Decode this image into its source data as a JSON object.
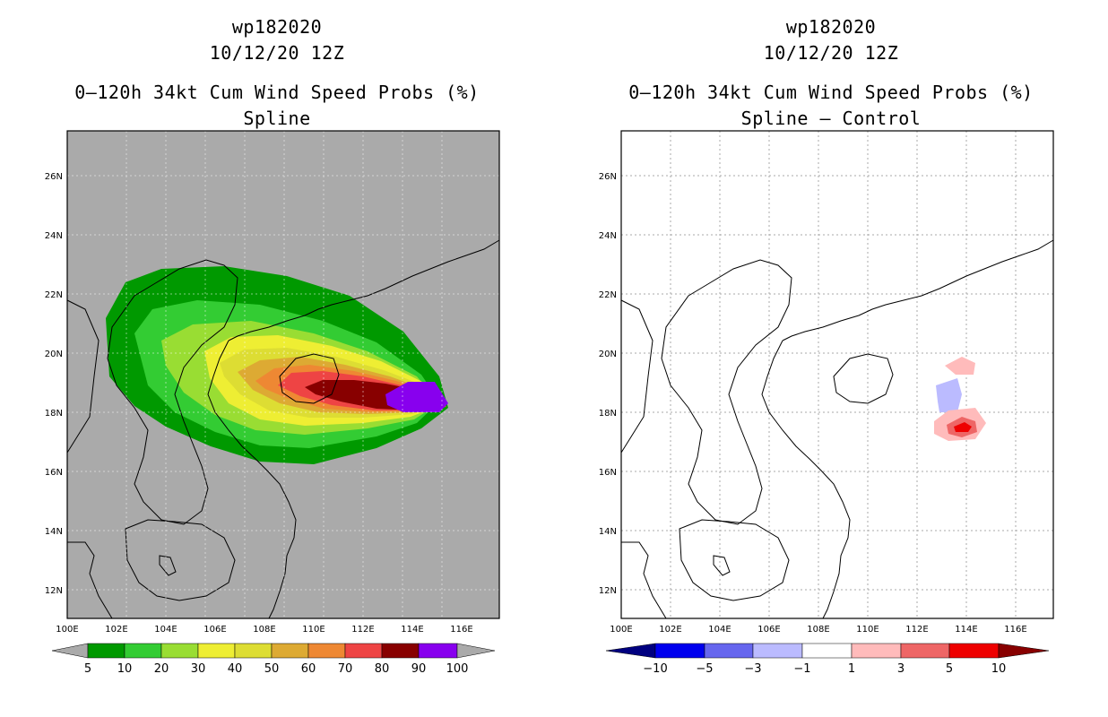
{
  "panels": [
    {
      "title_lines": [
        "wp182020",
        "10/12/20 12Z",
        "0–120h 34kt Cum Wind Speed Probs (%)",
        "Spline"
      ],
      "x_ticks": [
        "100E",
        "102E",
        "104E",
        "106E",
        "108E",
        "110E",
        "112E",
        "114E",
        "116E"
      ],
      "y_ticks": [
        "26N",
        "24N",
        "22N",
        "20N",
        "18N",
        "16N",
        "14N",
        "12N"
      ],
      "colorbar": {
        "labels": [
          "5",
          "10",
          "20",
          "30",
          "40",
          "50",
          "60",
          "70",
          "80",
          "90",
          "100"
        ],
        "colors": [
          "#009900",
          "#33cc33",
          "#99dd33",
          "#eeee33",
          "#dddd33",
          "#ddaa33",
          "#ee8833",
          "#ee4444",
          "#880000",
          "#8800ee"
        ]
      }
    },
    {
      "title_lines": [
        "wp182020",
        "10/12/20 12Z",
        "0–120h 34kt Cum Wind Speed Probs (%)",
        "Spline – Control"
      ],
      "x_ticks": [
        "100E",
        "102E",
        "104E",
        "106E",
        "108E",
        "110E",
        "112E",
        "114E",
        "116E"
      ],
      "y_ticks": [
        "26N",
        "24N",
        "22N",
        "20N",
        "18N",
        "16N",
        "14N",
        "12N"
      ],
      "colorbar": {
        "labels": [
          "−10",
          "−5",
          "−3",
          "−1",
          "1",
          "3",
          "5",
          "10"
        ],
        "colors": [
          "#000080",
          "#0000ee",
          "#6666ee",
          "#bbbbff",
          "#ffffff",
          "#ffbbbb",
          "#ee6666",
          "#ee0000",
          "#880000"
        ]
      }
    }
  ]
}
